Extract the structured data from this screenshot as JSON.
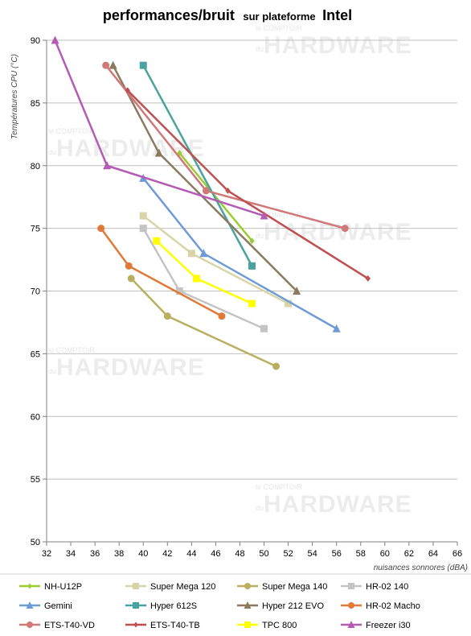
{
  "chart_data": {
    "type": "line",
    "title_parts": [
      "performances/bruit",
      "sur plateforme",
      "Intel"
    ],
    "xlabel": "nuisances sonnores (dBA)",
    "ylabel": "Températures  CPU (°C)",
    "xlim": [
      32,
      66
    ],
    "ylim": [
      50,
      90
    ],
    "xticks": [
      32,
      34,
      36,
      38,
      40,
      42,
      44,
      46,
      48,
      50,
      52,
      54,
      56,
      58,
      60,
      62,
      64,
      66
    ],
    "yticks": [
      50,
      55,
      60,
      65,
      70,
      75,
      80,
      85,
      90
    ],
    "grid": true,
    "legend_position": "bottom",
    "watermark": [
      "le COMPTOIR",
      "du",
      "HARDWARE"
    ],
    "series": [
      {
        "name": "NH-U12P",
        "color": "#9ACD32",
        "marker": "diamond",
        "x": [
          43,
          49
        ],
        "y": [
          81,
          74
        ]
      },
      {
        "name": "Super Mega 120",
        "color": "#D8D4A8",
        "marker": "square",
        "x": [
          40,
          44,
          52
        ],
        "y": [
          76,
          73,
          69
        ]
      },
      {
        "name": "Super Mega 140",
        "color": "#B8B060",
        "marker": "circle",
        "x": [
          39,
          42,
          51
        ],
        "y": [
          71,
          68,
          64
        ]
      },
      {
        "name": "HR-02 140",
        "color": "#C4C4C4",
        "marker": "square",
        "x": [
          40,
          43,
          50
        ],
        "y": [
          75,
          70,
          67
        ]
      },
      {
        "name": "Gemini",
        "color": "#6E9BD6",
        "marker": "triangle",
        "x": [
          40,
          45,
          56
        ],
        "y": [
          79,
          73,
          67
        ]
      },
      {
        "name": "Hyper 612S",
        "color": "#4AA3A0",
        "marker": "square",
        "x": [
          40,
          49
        ],
        "y": [
          88,
          72
        ]
      },
      {
        "name": "Hyper 212 EVO",
        "color": "#8C7A60",
        "marker": "triangle",
        "x": [
          37.5,
          41.3,
          52.7
        ],
        "y": [
          88,
          81,
          70
        ]
      },
      {
        "name": "HR-02 Macho",
        "color": "#E07A38",
        "marker": "circle",
        "x": [
          36.5,
          38.8,
          46.5
        ],
        "y": [
          75,
          72,
          68
        ]
      },
      {
        "name": "ETS-T40-VD",
        "color": "#D07878",
        "marker": "circle",
        "x": [
          36.9,
          45.2,
          56.7
        ],
        "y": [
          88,
          78,
          75
        ]
      },
      {
        "name": "ETS-T40-TB",
        "color": "#C05050",
        "marker": "diamond",
        "x": [
          38.7,
          47,
          58.6
        ],
        "y": [
          86,
          78,
          71
        ]
      },
      {
        "name": "TPC 800",
        "color": "#FFFF00",
        "marker": "square",
        "x": [
          41.1,
          44.4,
          49
        ],
        "y": [
          74,
          71,
          69
        ]
      },
      {
        "name": "Freezer i30",
        "color": "#B45CB4",
        "marker": "triangle",
        "x": [
          32.7,
          37,
          50
        ],
        "y": [
          90,
          80,
          76
        ]
      }
    ]
  }
}
